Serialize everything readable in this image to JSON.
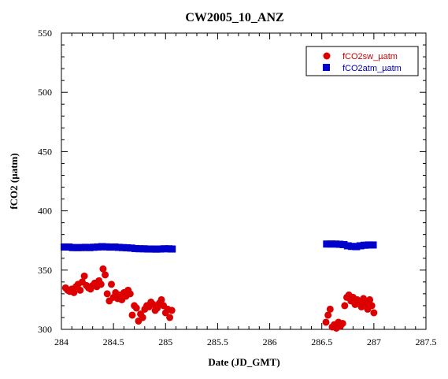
{
  "chart_data": {
    "type": "scatter",
    "title": "CW2005_10_ANZ",
    "xlabel": "Date (JD_GMT)",
    "ylabel": "fCO2 (µatm)",
    "xlim": [
      284,
      287.5
    ],
    "ylim": [
      300,
      550
    ],
    "x_ticks": [
      "284",
      "284.5",
      "285",
      "285.5",
      "286",
      "286.5",
      "287",
      "287.5"
    ],
    "y_ticks": [
      "300",
      "350",
      "400",
      "450",
      "500",
      "550"
    ],
    "grid": false,
    "legend_position": "top-right",
    "series": [
      {
        "name": "fCO2sw_µatm",
        "marker": "circle",
        "color": "#dd0000",
        "text_color": "#cc0000",
        "x": [
          284.04,
          284.06,
          284.08,
          284.1,
          284.12,
          284.14,
          284.16,
          284.18,
          284.2,
          284.22,
          284.24,
          284.26,
          284.28,
          284.3,
          284.32,
          284.34,
          284.36,
          284.38,
          284.4,
          284.42,
          284.44,
          284.46,
          284.48,
          284.5,
          284.52,
          284.54,
          284.56,
          284.58,
          284.6,
          284.62,
          284.64,
          284.66,
          284.68,
          284.7,
          284.72,
          284.74,
          284.76,
          284.78,
          284.8,
          284.82,
          284.84,
          284.86,
          284.88,
          284.9,
          284.92,
          284.94,
          284.96,
          284.98,
          285.0,
          285.02,
          285.04,
          285.06,
          286.54,
          286.56,
          286.58,
          286.6,
          286.62,
          286.64,
          286.66,
          286.68,
          286.7,
          286.72,
          286.74,
          286.76,
          286.78,
          286.8,
          286.82,
          286.84,
          286.86,
          286.88,
          286.9,
          286.92,
          286.94,
          286.96,
          286.98,
          287.0
        ],
        "y": [
          335,
          333,
          332,
          334,
          331,
          336,
          338,
          333,
          340,
          345,
          337,
          335,
          334,
          337,
          339,
          336,
          341,
          338,
          351,
          346,
          330,
          324,
          338,
          327,
          331,
          326,
          329,
          325,
          331,
          328,
          333,
          330,
          312,
          320,
          318,
          307,
          313,
          310,
          317,
          320,
          319,
          323,
          321,
          316,
          318,
          322,
          325,
          320,
          314,
          317,
          310,
          316,
          306,
          312,
          317,
          302,
          304,
          301,
          306,
          303,
          305,
          320,
          327,
          329,
          324,
          327,
          321,
          325,
          323,
          319,
          326,
          322,
          317,
          325,
          320,
          314
        ]
      },
      {
        "name": "fCO2atm_µatm",
        "marker": "square",
        "color": "#0000cc",
        "text_color": "#0000aa",
        "x": [
          284.03,
          284.07,
          284.11,
          284.15,
          284.19,
          284.23,
          284.27,
          284.31,
          284.35,
          284.39,
          284.43,
          284.47,
          284.51,
          284.55,
          284.59,
          284.63,
          284.67,
          284.71,
          284.75,
          284.79,
          284.83,
          284.87,
          284.91,
          284.95,
          284.99,
          285.03,
          285.06,
          286.55,
          286.59,
          286.63,
          286.67,
          286.71,
          286.75,
          286.79,
          286.83,
          286.87,
          286.91,
          286.95,
          286.99
        ],
        "y": [
          369.5,
          369.5,
          369,
          369,
          369,
          369.2,
          369,
          369.3,
          369.5,
          369.8,
          369.6,
          369.4,
          369.5,
          369.2,
          369,
          368.8,
          368.6,
          368.2,
          368,
          368,
          367.8,
          367.8,
          367.7,
          367.8,
          368,
          368,
          367.8,
          372,
          372,
          372,
          371.8,
          371.5,
          370.5,
          370,
          369.8,
          370.5,
          371,
          371.2,
          371.2
        ]
      }
    ]
  }
}
